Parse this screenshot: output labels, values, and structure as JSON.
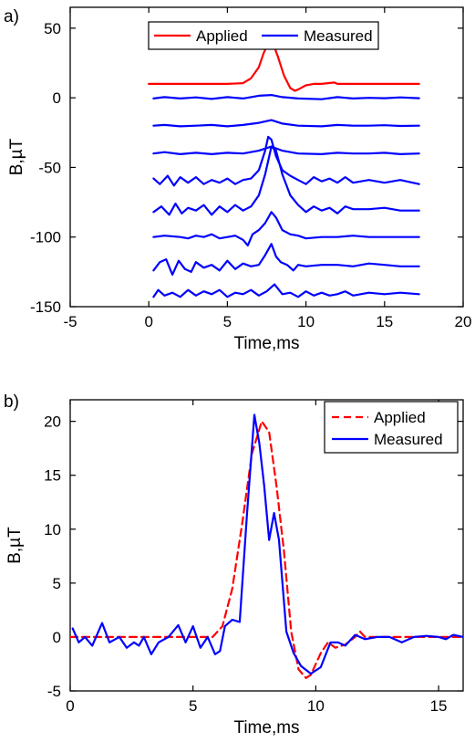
{
  "colors": {
    "applied": "#ff0000",
    "measured": "#0000ff",
    "axis": "#000000"
  },
  "chart_data": [
    {
      "type": "line",
      "panel_label": "a)",
      "xlabel": "Time,ms",
      "ylabel": "B,µT",
      "xlim": [
        -5,
        20
      ],
      "ylim": [
        -150,
        65
      ],
      "xticks": [
        -5,
        0,
        5,
        10,
        15,
        20
      ],
      "yticks": [
        -150,
        -100,
        -50,
        0,
        50
      ],
      "legend": {
        "placement": "top",
        "orientation": "horizontal",
        "entries": [
          "Applied",
          "Measured"
        ]
      },
      "series": [
        {
          "name": "Applied",
          "color": "#ff0000",
          "x": [
            0,
            5,
            6,
            6.5,
            7,
            7.3,
            7.6,
            7.9,
            8.2,
            8.6,
            9,
            9.3,
            9.6,
            10,
            10.5,
            11,
            11.8,
            12,
            13,
            17.2
          ],
          "y": [
            10,
            10,
            10.5,
            14,
            22,
            32,
            39,
            39,
            30,
            16,
            7,
            5,
            6.5,
            9,
            10,
            10,
            11,
            10,
            10,
            10
          ]
        },
        {
          "name": "Measured",
          "color": "#0000ff",
          "x": [
            0.3,
            1,
            2,
            3,
            4,
            5,
            6,
            7,
            7.8,
            8.5,
            9.5,
            11,
            12,
            13,
            14,
            15,
            16,
            17.2
          ],
          "y": [
            -0.5,
            0.5,
            -0.5,
            0.3,
            -0.8,
            0.5,
            -0.5,
            1.5,
            2,
            0.5,
            -0.5,
            -1,
            0.5,
            -0.5,
            0,
            -0.3,
            0.3,
            -0.3
          ]
        },
        {
          "name": "",
          "color": "#0000ff",
          "x": [
            0.3,
            1,
            2,
            3,
            4,
            5,
            6,
            7,
            7.8,
            8.5,
            9.5,
            11,
            12,
            13,
            14,
            15,
            16,
            17.2
          ],
          "y": [
            -20,
            -19.5,
            -20.5,
            -20,
            -19.5,
            -20.5,
            -19.5,
            -18,
            -16,
            -18.5,
            -20,
            -20.5,
            -19.5,
            -20,
            -20,
            -19.7,
            -20.2,
            -20
          ]
        },
        {
          "name": "",
          "color": "#0000ff",
          "x": [
            0.3,
            1,
            2,
            3,
            4,
            5,
            6,
            7,
            7.8,
            8.5,
            9.5,
            11,
            12,
            13,
            14,
            15,
            16,
            17.2
          ],
          "y": [
            -40,
            -39,
            -40.5,
            -39.5,
            -40.5,
            -39.5,
            -40,
            -38,
            -35,
            -38,
            -40,
            -40.5,
            -39.5,
            -40,
            -40,
            -39.5,
            -40.5,
            -40
          ]
        },
        {
          "name": "",
          "color": "#0000ff",
          "x": [
            0.3,
            0.7,
            1.2,
            1.6,
            2,
            2.5,
            3,
            3.5,
            4,
            4.5,
            5,
            5.5,
            6,
            6.5,
            7,
            7.4,
            7.6,
            7.8,
            8.1,
            8.5,
            9,
            9.5,
            10,
            10.5,
            11,
            11.5,
            12,
            12.5,
            13,
            14,
            15,
            16,
            17.2
          ],
          "y": [
            -58,
            -62,
            -56,
            -63,
            -57,
            -61,
            -57,
            -62,
            -59,
            -61,
            -58,
            -62,
            -59,
            -58,
            -52,
            -38,
            -28,
            -30,
            -42,
            -52,
            -56,
            -59,
            -62,
            -57,
            -60,
            -58,
            -61,
            -57,
            -61,
            -59,
            -61,
            -59,
            -62
          ]
        },
        {
          "name": "",
          "color": "#0000ff",
          "x": [
            0.3,
            0.8,
            1.3,
            1.7,
            2.1,
            2.5,
            3,
            3.5,
            4,
            4.5,
            5,
            5.5,
            6,
            6.5,
            7,
            7.4,
            7.8,
            8.1,
            8.5,
            9,
            9.5,
            10,
            10.5,
            11,
            11.5,
            12,
            12.5,
            13,
            14,
            15,
            16,
            17.2
          ],
          "y": [
            -82,
            -78,
            -84,
            -76,
            -83,
            -79,
            -81,
            -77,
            -84,
            -78,
            -82,
            -77,
            -81,
            -78,
            -70,
            -55,
            -35,
            -38,
            -55,
            -70,
            -77,
            -82,
            -78,
            -81,
            -79,
            -83,
            -78,
            -80,
            -80,
            -79,
            -81,
            -81
          ]
        },
        {
          "name": "",
          "color": "#0000ff",
          "x": [
            0.3,
            1,
            2,
            2.5,
            3,
            3.5,
            4,
            4.5,
            5,
            5.5,
            6,
            6.3,
            6.6,
            7,
            7.4,
            7.8,
            8.1,
            8.5,
            9,
            9.5,
            10,
            11,
            12,
            13,
            14,
            15,
            16,
            17.2
          ],
          "y": [
            -100,
            -99,
            -100,
            -101,
            -99,
            -100,
            -98,
            -101,
            -100,
            -99,
            -102,
            -106,
            -98,
            -95,
            -90,
            -82,
            -86,
            -95,
            -98,
            -99,
            -101,
            -100,
            -100,
            -99,
            -100,
            -100,
            -100,
            -100
          ]
        },
        {
          "name": "",
          "color": "#0000ff",
          "x": [
            0.3,
            0.7,
            1.1,
            1.5,
            1.9,
            2.3,
            2.7,
            3,
            3.5,
            4,
            4.5,
            5,
            5.5,
            6,
            6.5,
            7,
            7.4,
            7.8,
            8.1,
            8.4,
            8.8,
            9.2,
            9.5,
            10,
            11,
            12,
            13,
            14,
            15,
            16,
            17.2
          ],
          "y": [
            -124,
            -118,
            -116,
            -127,
            -117,
            -123,
            -125,
            -118,
            -122,
            -120,
            -124,
            -117,
            -123,
            -119,
            -121,
            -120,
            -113,
            -105,
            -114,
            -118,
            -120,
            -124,
            -120,
            -121,
            -120,
            -120,
            -121,
            -119,
            -120,
            -121,
            -121
          ]
        },
        {
          "name": "",
          "color": "#0000ff",
          "x": [
            0.3,
            0.6,
            1,
            1.5,
            2,
            2.5,
            3,
            3.5,
            4,
            4.5,
            5,
            5.5,
            6,
            6.5,
            7,
            7.5,
            8,
            8.5,
            9,
            9.5,
            10,
            10.5,
            11,
            11.5,
            12,
            12.5,
            13,
            14,
            15,
            16,
            17.2
          ],
          "y": [
            -143,
            -138,
            -142,
            -140,
            -143,
            -138,
            -142,
            -139,
            -141,
            -138,
            -143,
            -140,
            -141,
            -138,
            -142,
            -139,
            -134,
            -141,
            -140,
            -143,
            -139,
            -142,
            -140,
            -142,
            -141,
            -139,
            -142,
            -140,
            -141,
            -140,
            -141
          ]
        }
      ]
    },
    {
      "type": "line",
      "panel_label": "b)",
      "xlabel": "Time,ms",
      "ylabel": "B,µT",
      "xlim": [
        0,
        16
      ],
      "ylim": [
        -5,
        22
      ],
      "xticks": [
        0,
        5,
        10,
        15
      ],
      "yticks": [
        -5,
        0,
        5,
        10,
        15,
        20
      ],
      "legend": {
        "placement": "top-right",
        "orientation": "vertical",
        "entries": [
          "Applied",
          "Measured"
        ]
      },
      "series": [
        {
          "name": "Applied",
          "color": "#ff0000",
          "dash": true,
          "x": [
            0,
            5.8,
            6.2,
            6.6,
            7,
            7.4,
            7.8,
            8.1,
            8.4,
            8.7,
            9,
            9.3,
            9.6,
            9.8,
            10.2,
            10.5,
            10.8,
            11.2,
            11.6,
            11.8,
            12,
            13,
            16
          ],
          "y": [
            0,
            0,
            1,
            4.5,
            10.5,
            17,
            20,
            19,
            14,
            8,
            0.5,
            -3,
            -3.8,
            -3.5,
            -1.5,
            -0.5,
            -1,
            -0.7,
            0,
            0.5,
            0,
            0,
            0
          ]
        },
        {
          "name": "Measured",
          "color": "#0000ff",
          "x": [
            0.1,
            0.35,
            0.6,
            0.9,
            1.3,
            1.6,
            2,
            2.3,
            2.6,
            2.8,
            3,
            3.3,
            3.6,
            4,
            4.4,
            4.7,
            5,
            5.3,
            5.6,
            5.9,
            6.1,
            6.3,
            6.6,
            6.9,
            7.2,
            7.5,
            7.7,
            7.9,
            8.1,
            8.3,
            8.5,
            8.8,
            9.1,
            9.4,
            9.8,
            10.2,
            10.6,
            10.9,
            11.2,
            11.6,
            12,
            12.5,
            13,
            13.5,
            14,
            14.5,
            15,
            15.3,
            15.6,
            16
          ],
          "y": [
            0.8,
            -0.5,
            0,
            -0.8,
            1.3,
            -0.5,
            0,
            -1,
            -0.5,
            -0.8,
            0,
            -1.6,
            -0.5,
            0,
            1.1,
            -0.5,
            1,
            -1,
            0,
            -1.6,
            -1.3,
            1,
            1.6,
            1.4,
            11.5,
            20.6,
            18,
            14,
            9,
            11.5,
            9,
            0.5,
            -1.5,
            -2.7,
            -3.4,
            -2.8,
            -0.5,
            -0.5,
            -0.8,
            0.2,
            -0.2,
            0,
            0,
            -0.5,
            0,
            0.1,
            0,
            -0.2,
            0.2,
            0
          ]
        }
      ]
    }
  ]
}
